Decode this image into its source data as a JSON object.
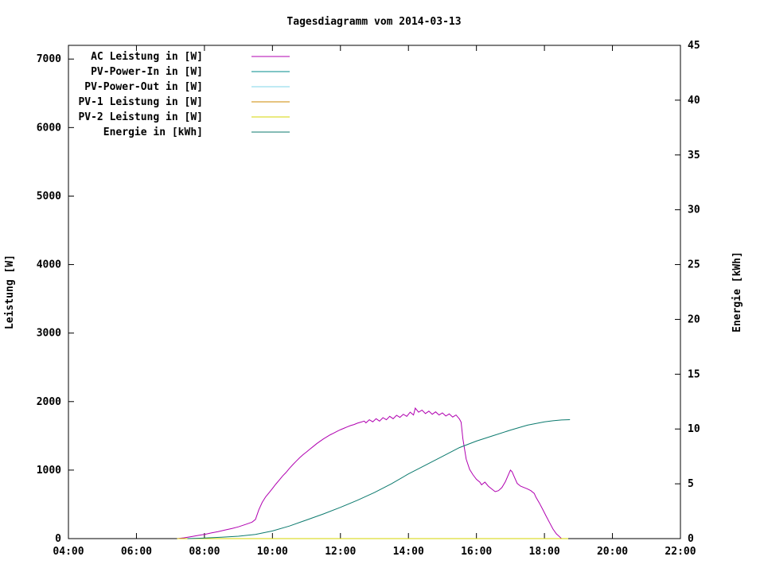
{
  "page": {
    "background": "#ffffff"
  },
  "chart_data": {
    "type": "line",
    "title": "Tagesdiagramm vom 2014-03-13",
    "grid": false,
    "legend_position": "top-left",
    "x_axis": {
      "range": [
        4,
        22
      ],
      "tick_values": [
        4,
        6,
        8,
        10,
        12,
        14,
        16,
        18,
        20,
        22
      ],
      "tick_labels": [
        "04:00",
        "06:00",
        "08:00",
        "10:00",
        "12:00",
        "14:00",
        "16:00",
        "18:00",
        "20:00",
        "22:00"
      ]
    },
    "y_left": {
      "label": "Leistung [W]",
      "range": [
        0,
        7200
      ],
      "tick_values": [
        0,
        1000,
        2000,
        3000,
        4000,
        5000,
        6000,
        7000
      ]
    },
    "y_right": {
      "label": "Energie [kWh]",
      "range": [
        0,
        45
      ],
      "tick_values": [
        0,
        5,
        10,
        15,
        20,
        25,
        30,
        35,
        40,
        45
      ]
    },
    "series": [
      {
        "name": "AC Leistung in [W]",
        "color": "#b000b0",
        "axis": "left",
        "points": [
          [
            7.2,
            0
          ],
          [
            7.4,
            12
          ],
          [
            7.6,
            28
          ],
          [
            7.8,
            45
          ],
          [
            8.0,
            62
          ],
          [
            8.2,
            82
          ],
          [
            8.4,
            102
          ],
          [
            8.6,
            124
          ],
          [
            8.8,
            146
          ],
          [
            9.0,
            172
          ],
          [
            9.2,
            205
          ],
          [
            9.4,
            240
          ],
          [
            9.5,
            280
          ],
          [
            9.6,
            420
          ],
          [
            9.7,
            530
          ],
          [
            9.8,
            610
          ],
          [
            9.9,
            670
          ],
          [
            10.0,
            730
          ],
          [
            10.1,
            795
          ],
          [
            10.2,
            855
          ],
          [
            10.3,
            915
          ],
          [
            10.4,
            965
          ],
          [
            10.5,
            1025
          ],
          [
            10.6,
            1080
          ],
          [
            10.7,
            1130
          ],
          [
            10.8,
            1180
          ],
          [
            10.9,
            1225
          ],
          [
            11.0,
            1265
          ],
          [
            11.1,
            1305
          ],
          [
            11.2,
            1345
          ],
          [
            11.3,
            1385
          ],
          [
            11.4,
            1420
          ],
          [
            11.5,
            1455
          ],
          [
            11.6,
            1485
          ],
          [
            11.7,
            1515
          ],
          [
            11.8,
            1540
          ],
          [
            11.9,
            1565
          ],
          [
            12.0,
            1590
          ],
          [
            12.1,
            1610
          ],
          [
            12.2,
            1630
          ],
          [
            12.3,
            1650
          ],
          [
            12.4,
            1665
          ],
          [
            12.5,
            1685
          ],
          [
            12.6,
            1700
          ],
          [
            12.7,
            1715
          ],
          [
            12.75,
            1690
          ],
          [
            12.85,
            1735
          ],
          [
            12.95,
            1705
          ],
          [
            13.05,
            1750
          ],
          [
            13.15,
            1715
          ],
          [
            13.25,
            1765
          ],
          [
            13.35,
            1735
          ],
          [
            13.45,
            1785
          ],
          [
            13.55,
            1750
          ],
          [
            13.65,
            1800
          ],
          [
            13.75,
            1770
          ],
          [
            13.85,
            1815
          ],
          [
            13.95,
            1785
          ],
          [
            14.05,
            1845
          ],
          [
            14.15,
            1805
          ],
          [
            14.2,
            1905
          ],
          [
            14.3,
            1845
          ],
          [
            14.4,
            1875
          ],
          [
            14.5,
            1825
          ],
          [
            14.6,
            1860
          ],
          [
            14.7,
            1815
          ],
          [
            14.8,
            1850
          ],
          [
            14.9,
            1805
          ],
          [
            15.0,
            1835
          ],
          [
            15.1,
            1790
          ],
          [
            15.2,
            1820
          ],
          [
            15.3,
            1775
          ],
          [
            15.4,
            1805
          ],
          [
            15.5,
            1745
          ],
          [
            15.55,
            1700
          ],
          [
            15.6,
            1460
          ],
          [
            15.7,
            1160
          ],
          [
            15.8,
            1010
          ],
          [
            15.9,
            930
          ],
          [
            16.0,
            865
          ],
          [
            16.1,
            825
          ],
          [
            16.15,
            785
          ],
          [
            16.25,
            825
          ],
          [
            16.35,
            765
          ],
          [
            16.45,
            725
          ],
          [
            16.55,
            685
          ],
          [
            16.65,
            700
          ],
          [
            16.75,
            745
          ],
          [
            16.85,
            830
          ],
          [
            16.95,
            945
          ],
          [
            17.0,
            1000
          ],
          [
            17.05,
            975
          ],
          [
            17.1,
            915
          ],
          [
            17.2,
            805
          ],
          [
            17.3,
            765
          ],
          [
            17.4,
            745
          ],
          [
            17.5,
            725
          ],
          [
            17.6,
            700
          ],
          [
            17.7,
            660
          ],
          [
            17.75,
            605
          ],
          [
            17.85,
            520
          ],
          [
            17.95,
            425
          ],
          [
            18.05,
            330
          ],
          [
            18.15,
            235
          ],
          [
            18.25,
            140
          ],
          [
            18.35,
            70
          ],
          [
            18.45,
            25
          ],
          [
            18.5,
            0
          ]
        ]
      },
      {
        "name": "PV-Power-In in [W]",
        "color": "#008b8b",
        "axis": "left",
        "points": [
          [
            7.2,
            0
          ],
          [
            18.7,
            0
          ]
        ]
      },
      {
        "name": "PV-Power-Out in [W]",
        "color": "#7fd4e8",
        "axis": "left",
        "points": [
          [
            7.2,
            0
          ],
          [
            18.7,
            0
          ]
        ]
      },
      {
        "name": "PV-1 Leistung in [W]",
        "color": "#cc8800",
        "axis": "left",
        "points": [
          [
            7.2,
            0
          ],
          [
            18.7,
            0
          ]
        ]
      },
      {
        "name": "PV-2 Leistung in [W]",
        "color": "#d6d600",
        "axis": "left",
        "points": [
          [
            7.2,
            0
          ],
          [
            18.7,
            0
          ]
        ]
      },
      {
        "name": "Energie in [kWh]",
        "color": "#0c7a6e",
        "axis": "right",
        "points": [
          [
            7.5,
            0
          ],
          [
            8.0,
            0.05
          ],
          [
            8.5,
            0.12
          ],
          [
            9.0,
            0.22
          ],
          [
            9.5,
            0.38
          ],
          [
            10.0,
            0.7
          ],
          [
            10.5,
            1.15
          ],
          [
            11.0,
            1.7
          ],
          [
            11.5,
            2.25
          ],
          [
            12.0,
            2.85
          ],
          [
            12.5,
            3.5
          ],
          [
            13.0,
            4.2
          ],
          [
            13.5,
            5.0
          ],
          [
            14.0,
            5.9
          ],
          [
            14.5,
            6.7
          ],
          [
            15.0,
            7.5
          ],
          [
            15.5,
            8.3
          ],
          [
            16.0,
            8.9
          ],
          [
            16.5,
            9.4
          ],
          [
            17.0,
            9.9
          ],
          [
            17.5,
            10.35
          ],
          [
            18.0,
            10.65
          ],
          [
            18.25,
            10.75
          ],
          [
            18.5,
            10.82
          ],
          [
            18.75,
            10.85
          ]
        ]
      }
    ]
  }
}
